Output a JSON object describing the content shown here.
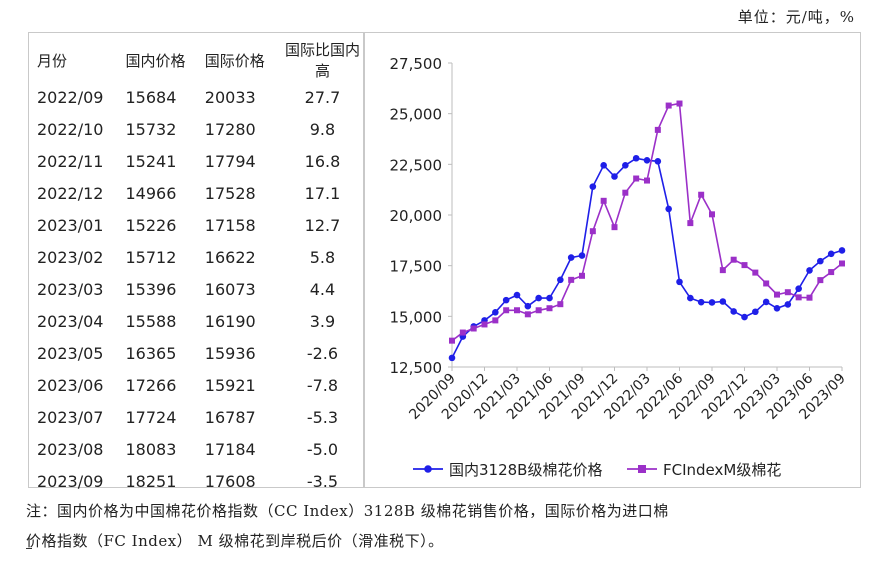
{
  "unit_label": "单位：元/吨，%",
  "table": {
    "headers": [
      "月份",
      "国内价格",
      "国际价格",
      "国际比国内高"
    ],
    "rows": [
      [
        "2022/09",
        "15684",
        "20033",
        "27.7"
      ],
      [
        "2022/10",
        "15732",
        "17280",
        "9.8"
      ],
      [
        "2022/11",
        "15241",
        "17794",
        "16.8"
      ],
      [
        "2022/12",
        "14966",
        "17528",
        "17.1"
      ],
      [
        "2023/01",
        "15226",
        "17158",
        "12.7"
      ],
      [
        "2023/02",
        "15712",
        "16622",
        "5.8"
      ],
      [
        "2023/03",
        "15396",
        "16073",
        "4.4"
      ],
      [
        "2023/04",
        "15588",
        "16190",
        "3.9"
      ],
      [
        "2023/05",
        "16365",
        "15936",
        "-2.6"
      ],
      [
        "2023/06",
        "17266",
        "15921",
        "-7.8"
      ],
      [
        "2023/07",
        "17724",
        "16787",
        "-5.3"
      ],
      [
        "2023/08",
        "18083",
        "17184",
        "-5.0"
      ],
      [
        "2023/09",
        "18251",
        "17608",
        "-3.5"
      ]
    ]
  },
  "chart_data": {
    "type": "line",
    "x": [
      "2020/09",
      "2020/10",
      "2020/11",
      "2020/12",
      "2021/01",
      "2021/02",
      "2021/03",
      "2021/04",
      "2021/05",
      "2021/06",
      "2021/07",
      "2021/08",
      "2021/09",
      "2021/10",
      "2021/11",
      "2021/12",
      "2022/01",
      "2022/02",
      "2022/03",
      "2022/04",
      "2022/05",
      "2022/06",
      "2022/07",
      "2022/08",
      "2022/09",
      "2022/10",
      "2022/11",
      "2022/12",
      "2023/01",
      "2023/02",
      "2023/03",
      "2023/04",
      "2023/05",
      "2023/06",
      "2023/07",
      "2023/08",
      "2023/09"
    ],
    "tick_labels": [
      "2020/09",
      "2020/12",
      "2021/03",
      "2021/06",
      "2021/09",
      "2021/12",
      "2022/03",
      "2022/06",
      "2022/09",
      "2022/12",
      "2023/03",
      "2023/06",
      "2023/09"
    ],
    "series": [
      {
        "name": "国内3128B级棉花价格",
        "color": "#1f1fe8",
        "marker": "circle",
        "values": [
          12950,
          14000,
          14500,
          14800,
          15200,
          15800,
          16050,
          15500,
          15900,
          15900,
          16800,
          17900,
          18000,
          21400,
          22450,
          21900,
          22450,
          22800,
          22700,
          22650,
          20300,
          16700,
          15900,
          15700,
          15684,
          15732,
          15241,
          14966,
          15226,
          15712,
          15396,
          15588,
          16365,
          17266,
          17724,
          18083,
          18251
        ]
      },
      {
        "name": "FCIndexM级棉花",
        "color": "#9b30c8",
        "marker": "square",
        "values": [
          13800,
          14200,
          14400,
          14600,
          14800,
          15300,
          15300,
          15100,
          15300,
          15400,
          15600,
          16800,
          17000,
          19200,
          20700,
          19400,
          21100,
          21800,
          21700,
          24200,
          25400,
          25500,
          19600,
          21000,
          20033,
          17280,
          17794,
          17528,
          17158,
          16622,
          16073,
          16190,
          15936,
          15921,
          16787,
          17184,
          17608
        ]
      }
    ],
    "ylim": [
      12500,
      27500
    ],
    "yticks": [
      "12,500",
      "15,000",
      "17,500",
      "20,000",
      "22,500",
      "25,000",
      "27,500"
    ],
    "grid": false,
    "legend_position": "bottom"
  },
  "note": {
    "line1": "注：国内价格为中国棉花价格指数（CC Index）3128B 级棉花销售价格，国际价格为进口棉",
    "line2": "价格指数（FC Index） M 级棉花到岸税后价（滑准税下）。"
  }
}
